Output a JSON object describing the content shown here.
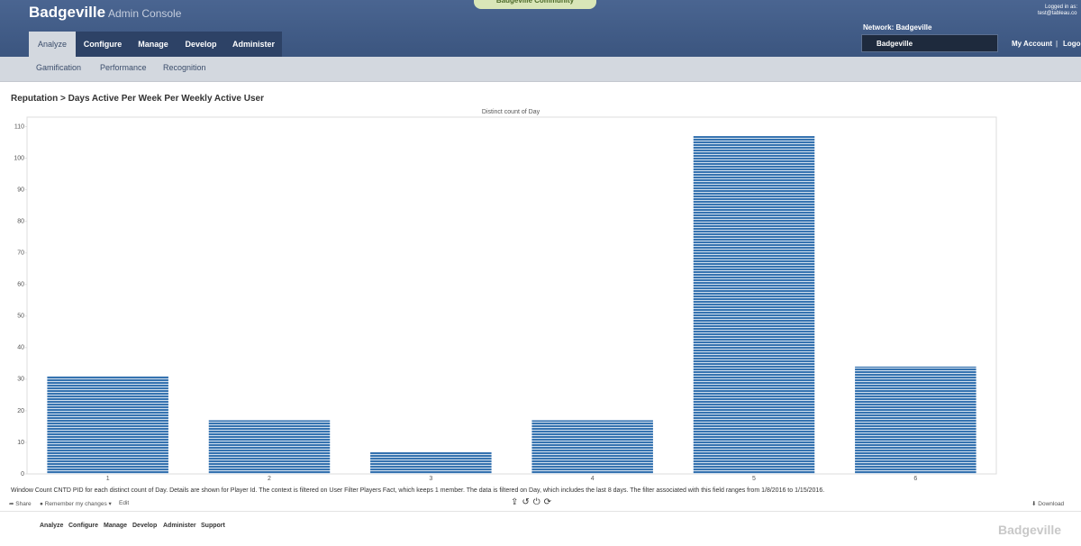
{
  "header": {
    "brand": "Badgeville",
    "product": "Admin Console",
    "community": "Badgeville Community",
    "logged_in_label": "Logged in as:",
    "user": "test@tableau.co",
    "network": "Network: Badgeville",
    "network_select": "Badgeville",
    "my_account": "My Account",
    "separator": "|",
    "logout": "Logout"
  },
  "nav": {
    "tabs": [
      "Analyze",
      "Configure",
      "Manage",
      "Develop",
      "Administer"
    ],
    "subtabs": [
      "Gamification",
      "Performance",
      "Recognition"
    ]
  },
  "page_title": "Reputation > Days Active Per Week Per Weekly Active User",
  "chart_data": {
    "type": "bar",
    "title": "Distinct count of Day",
    "categories": [
      "1",
      "2",
      "3",
      "4",
      "5",
      "6"
    ],
    "values": [
      31,
      17,
      7,
      17,
      107,
      34
    ],
    "color": "#3673b0",
    "ylim": [
      0,
      113
    ],
    "yticks": [
      0,
      10,
      20,
      30,
      40,
      50,
      60,
      70,
      80,
      90,
      100,
      110
    ],
    "grid": false
  },
  "caption": "Window Count CNTD PID for each distinct count of Day.  Details are shown for Player Id. The context is filtered on User Filter Players Fact, which keeps 1 member. The data is filtered on Day, which includes the last 8 days. The filter associated with this field ranges from 1/8/2016 to 1/15/2016.",
  "toolbar": {
    "share": "Share",
    "remember": "Remember my changes",
    "edit": "Edit",
    "download": "Download"
  },
  "footer": {
    "links": [
      "Analyze",
      "Configure",
      "Manage",
      "Develop",
      "Administer",
      "Support"
    ],
    "logo": "Badgeville"
  }
}
